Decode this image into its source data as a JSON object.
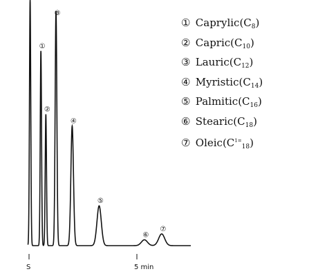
{
  "chart_data": {
    "type": "line",
    "x_axis": {
      "ticks": [
        {
          "x": 0,
          "label": "S"
        },
        {
          "x": 5,
          "label": "5 min"
        }
      ]
    },
    "peaks": [
      {
        "id": 1,
        "marker": "①",
        "name": "Caprylic",
        "carbon": "C8",
        "sub": "8",
        "time_min": 0.55,
        "height": 0.83,
        "width": 0.03
      },
      {
        "id": 2,
        "marker": "②",
        "name": "Capric",
        "carbon": "C10",
        "sub": "10",
        "time_min": 0.78,
        "height": 0.56,
        "width": 0.03
      },
      {
        "id": 3,
        "marker": "③",
        "name": "Lauric",
        "carbon": "C12",
        "sub": "12",
        "time_min": 1.25,
        "height": 1.0,
        "width": 0.04
      },
      {
        "id": 4,
        "marker": "④",
        "name": "Myristic",
        "carbon": "C14",
        "sub": "14",
        "time_min": 2.0,
        "height": 0.51,
        "width": 0.06
      },
      {
        "id": 5,
        "marker": "⑤",
        "name": "Palmitic",
        "carbon": "C16",
        "sub": "16",
        "time_min": 3.25,
        "height": 0.17,
        "width": 0.1
      },
      {
        "id": 6,
        "marker": "⑥",
        "name": "Stearic",
        "carbon": "C18",
        "sub": "18",
        "time_min": 5.35,
        "height": 0.025,
        "width": 0.14
      },
      {
        "id": 7,
        "marker": "⑦",
        "name": "Oleic",
        "carbon": "C1=18",
        "sub": "1=",
        "sub2": "18",
        "time_min": 6.15,
        "height": 0.05,
        "width": 0.14
      }
    ],
    "solvent_front": {
      "time_min": 0.05,
      "height": 1.0
    }
  }
}
